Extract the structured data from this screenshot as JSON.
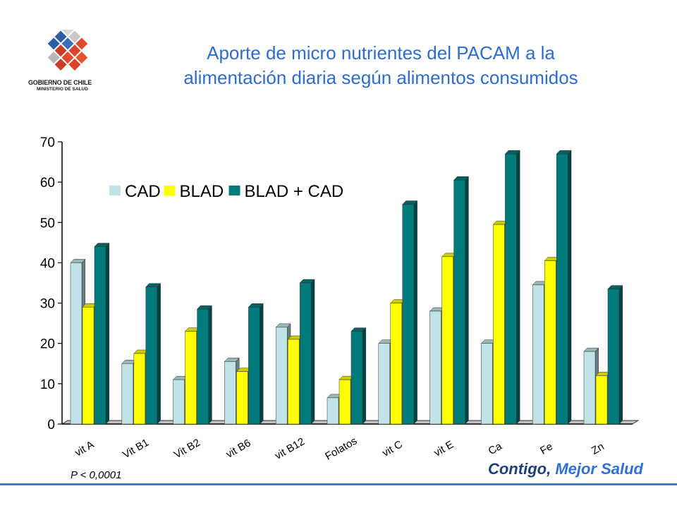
{
  "header": {
    "title_line1": "Aporte de micro nutrientes del PACAM a la",
    "title_line2": "alimentación diaria según alimentos consumidos",
    "logo_line1": "GOBIERNO DE CHILE",
    "logo_line2": "MINISTERIO DE SALUD"
  },
  "footer": {
    "p_value": "P < 0,0001",
    "slogan_part1": "Contigo,",
    "slogan_part2": "Mejor Salud"
  },
  "chart_data": {
    "type": "bar",
    "title": "",
    "xlabel": "",
    "ylabel": "",
    "ylim": [
      0,
      70
    ],
    "yticks": [
      0,
      10,
      20,
      30,
      40,
      50,
      60,
      70
    ],
    "grid": false,
    "legend_position": "top-left",
    "categories": [
      "vit A",
      "Vit B1",
      "Vit B2",
      "vit B6",
      "vit B12",
      "Folatos",
      "vit C",
      "vit E",
      "Ca",
      "Fe",
      "Zn"
    ],
    "series": [
      {
        "name": "CAD",
        "color": "#bfe3e6",
        "values": [
          40,
          15,
          11,
          15.5,
          24,
          6.5,
          20,
          28,
          20,
          34.5,
          18
        ]
      },
      {
        "name": "BLAD",
        "color": "#ffff00",
        "values": [
          29,
          17.5,
          23,
          13,
          21,
          11,
          30,
          41.5,
          49.5,
          40.5,
          12
        ]
      },
      {
        "name": "BLAD + CAD",
        "color": "#007a7a",
        "values": [
          44,
          34,
          28.5,
          29,
          35,
          23,
          54.5,
          60.5,
          67,
          67,
          33.5
        ]
      }
    ]
  }
}
